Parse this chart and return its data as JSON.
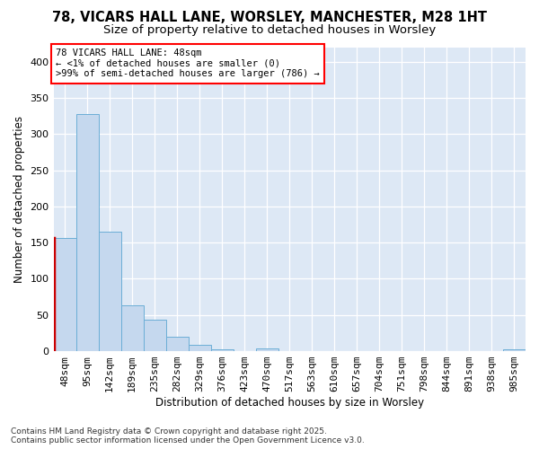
{
  "title_line1": "78, VICARS HALL LANE, WORSLEY, MANCHESTER, M28 1HT",
  "title_line2": "Size of property relative to detached houses in Worsley",
  "xlabel": "Distribution of detached houses by size in Worsley",
  "ylabel": "Number of detached properties",
  "categories": [
    "48sqm",
    "95sqm",
    "142sqm",
    "189sqm",
    "235sqm",
    "282sqm",
    "329sqm",
    "376sqm",
    "423sqm",
    "470sqm",
    "517sqm",
    "563sqm",
    "610sqm",
    "657sqm",
    "704sqm",
    "751sqm",
    "798sqm",
    "844sqm",
    "891sqm",
    "938sqm",
    "985sqm"
  ],
  "values": [
    157,
    328,
    165,
    63,
    43,
    20,
    9,
    3,
    0,
    4,
    0,
    0,
    0,
    0,
    0,
    0,
    0,
    0,
    0,
    0,
    2
  ],
  "bar_color": "#c5d8ee",
  "bar_edge_color": "#6baed6",
  "highlight_bar_index": 0,
  "highlight_color": "#cc0000",
  "ylim": [
    0,
    420
  ],
  "yticks": [
    0,
    50,
    100,
    150,
    200,
    250,
    300,
    350,
    400
  ],
  "annotation_text": "78 VICARS HALL LANE: 48sqm\n← <1% of detached houses are smaller (0)\n>99% of semi-detached houses are larger (786) →",
  "footer_line1": "Contains HM Land Registry data © Crown copyright and database right 2025.",
  "footer_line2": "Contains public sector information licensed under the Open Government Licence v3.0.",
  "fig_bg_color": "#ffffff",
  "plot_bg_color": "#dde8f5",
  "grid_color": "#ffffff",
  "title_fontsize": 10.5,
  "subtitle_fontsize": 9.5,
  "tick_fontsize": 7.5,
  "ylabel_fontsize": 8.5,
  "xlabel_fontsize": 8.5,
  "footer_fontsize": 6.5
}
